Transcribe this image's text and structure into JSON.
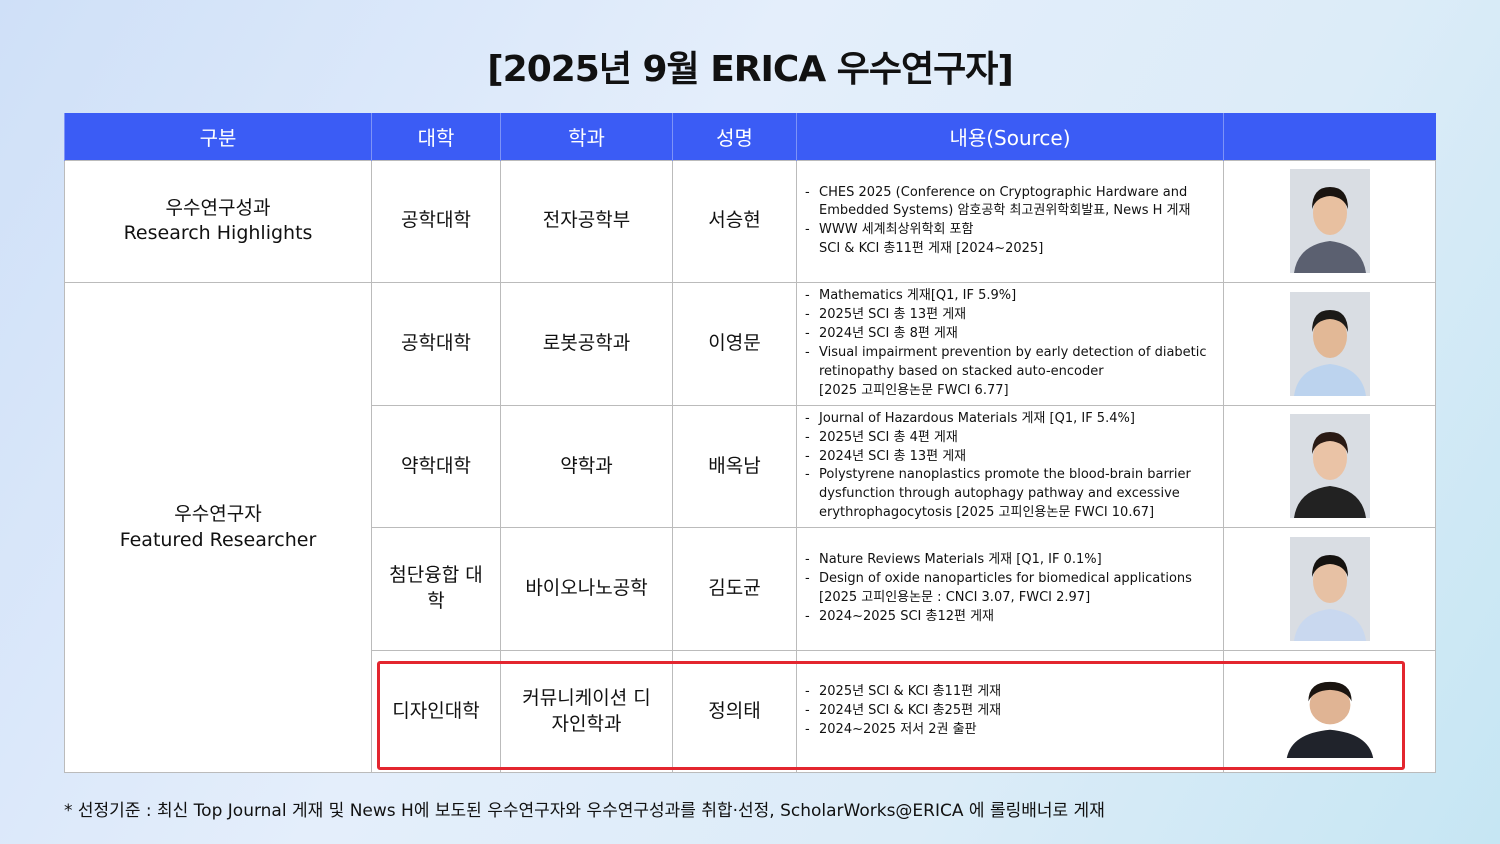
{
  "title": "[2025년 9월 ERICA 우수연구자]",
  "headers": [
    "구분",
    "대학",
    "학과",
    "성명",
    "내용(Source)",
    ""
  ],
  "categories": [
    {
      "ko": "우수연구성과",
      "en": "Research Highlights"
    },
    {
      "ko": "우수연구자",
      "en": "Featured Researcher"
    }
  ],
  "rows": [
    {
      "college": "공학대학",
      "dept": "전자공학부",
      "name": "서승현",
      "items": [
        {
          "text": "CHES 2025 (Conference on Cryptographic Hardware and Embedded Systems) 암호공학 최고권위학회발표, News H 게재"
        },
        {
          "text": "WWW 세계최상위학회 포함"
        },
        {
          "text": "SCI & KCI 총11편 게재 [2024~2025]"
        }
      ]
    },
    {
      "college": "공학대학",
      "dept": "로봇공학과",
      "name": "이영문",
      "items": [
        {
          "text": "Mathematics 게재[Q1, IF 5.9%]"
        },
        {
          "text": "2025년 SCI 총 13편 게재"
        },
        {
          "text": "2024년 SCI 총 8편 게재"
        },
        {
          "text": "Visual impairment prevention by early detection of diabetic retinopathy based on stacked auto-encoder"
        },
        {
          "text": "[2025 고피인용논문 FWCI 6.77]"
        }
      ]
    },
    {
      "college": "약학대학",
      "dept": "약학과",
      "name": "배옥남",
      "items": [
        {
          "text": "Journal of Hazardous Materials 게재 [Q1, IF 5.4%]"
        },
        {
          "text": "2025년 SCI 총 4편 게재"
        },
        {
          "text": "2024년 SCI 총 13편 게재"
        },
        {
          "text": "Polystyrene nanoplastics promote the blood-brain barrier dysfunction through autophagy pathway and excessive erythrophagocytosis [2025 고피인용논문 FWCI 10.67]"
        }
      ]
    },
    {
      "college": "첨단융합 대학",
      "dept": "바이오나노공학",
      "name": "김도균",
      "items": [
        {
          "text": "Nature Reviews Materials 게재 [Q1, IF 0.1%]"
        },
        {
          "text": "Design of oxide nanoparticles for biomedical applications"
        },
        {
          "text": "[2025 고피인용논문 : CNCI 3.07, FWCI 2.97]"
        },
        {
          "text": "2024~2025 SCI 총12편 게재"
        }
      ]
    },
    {
      "college": "디자인대학",
      "dept": "커뮤니케이션 디자인학과",
      "name": "정의태",
      "items": [
        {
          "text": "2025년 SCI & KCI 총11편 게재"
        },
        {
          "text": "2024년 SCI & KCI 총25편 게재"
        },
        {
          "text": "2024~2025 저서 2권 출판"
        }
      ]
    }
  ],
  "footnote": "* 선정기준 : 최신 Top Journal 게재 및 News H에 보도된 우수연구자와 우수연구성과를 취합·선정, ScholarWorks@ERICA 에 롤링배너로 게재",
  "colors": {
    "header": "#3b5cf5",
    "highlight": "#e3262f"
  }
}
